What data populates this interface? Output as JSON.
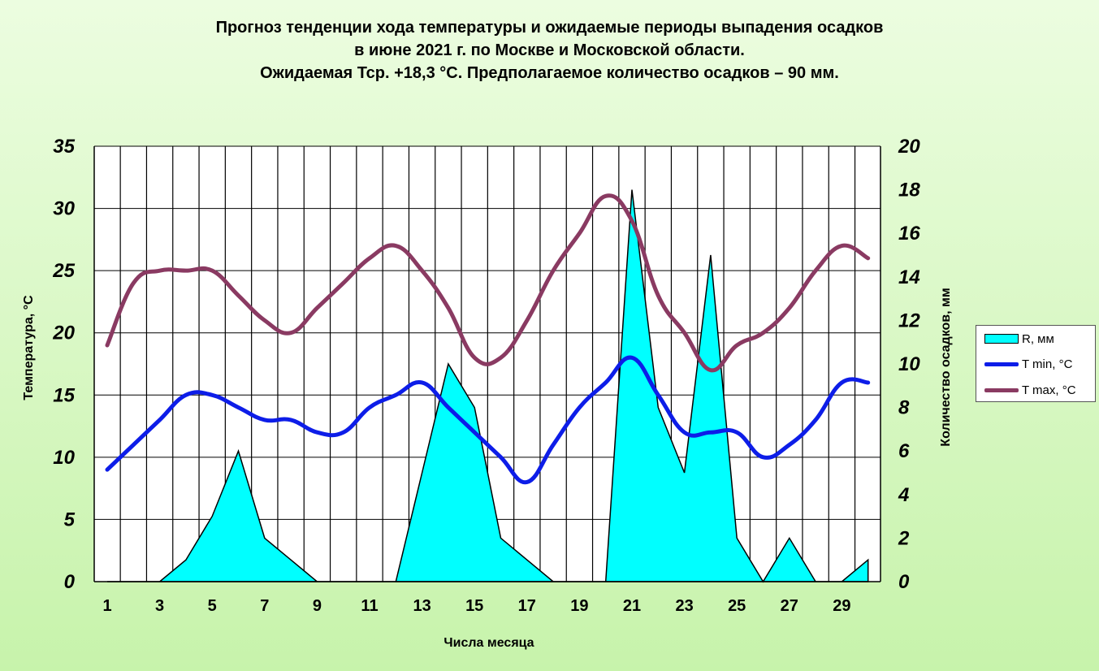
{
  "title": {
    "line1": "Прогноз тенденции хода температуры и ожидаемые периоды выпадения осадков",
    "line2": "в июне 2021 г. по Москве и Московской области.",
    "line3": "Ожидаемая Тср. +18,3 °С. Предполагаемое количество осадков – 90 мм."
  },
  "colors": {
    "precip_fill": "#00ffff",
    "tmin": "#0d1de8",
    "tmax": "#8a3a62",
    "grid": "#000000",
    "plot_bg": "#ffffff"
  },
  "legend": {
    "position": "right",
    "items": [
      {
        "label": "R, мм",
        "series": "precip"
      },
      {
        "label": "T min, °C",
        "series": "tmin"
      },
      {
        "label": "T max, °C",
        "series": "tmax"
      }
    ]
  },
  "chart_data": {
    "type": "line",
    "title": "Прогноз тенденции хода температуры и ожидаемые периоды выпадения осадков в июне 2021 г. по Москве и Московской области.",
    "xlabel": "Числа месяца",
    "ylabel": "Температура, °С",
    "y2label": "Количество осадков, мм",
    "x": [
      1,
      2,
      3,
      4,
      5,
      6,
      7,
      8,
      9,
      10,
      11,
      12,
      13,
      14,
      15,
      16,
      17,
      18,
      19,
      20,
      21,
      22,
      23,
      24,
      25,
      26,
      27,
      28,
      29,
      30
    ],
    "xticks": [
      "1",
      "3",
      "5",
      "7",
      "9",
      "11",
      "13",
      "15",
      "17",
      "19",
      "21",
      "23",
      "25",
      "27",
      "29"
    ],
    "ylim": [
      0,
      35
    ],
    "yticks": [
      "0",
      "5",
      "10",
      "15",
      "20",
      "25",
      "30",
      "35"
    ],
    "y2lim": [
      0,
      20
    ],
    "y2ticks": [
      "0",
      "2",
      "4",
      "6",
      "8",
      "10",
      "12",
      "14",
      "16",
      "18",
      "20"
    ],
    "grid": true,
    "series": [
      {
        "name": "R, мм",
        "type": "area",
        "axis": "right",
        "values": [
          0,
          0,
          0,
          1,
          3,
          6,
          2,
          1,
          0,
          0,
          0,
          0,
          5,
          10,
          8,
          2,
          1,
          0,
          0,
          0,
          18,
          8,
          5,
          15,
          2,
          0,
          2,
          0,
          0,
          1
        ]
      },
      {
        "name": "T min, °C",
        "type": "line",
        "axis": "left",
        "values": [
          9,
          11,
          13,
          15,
          15,
          14,
          13,
          13,
          12,
          12,
          14,
          15,
          16,
          14,
          12,
          10,
          8,
          11,
          14,
          16,
          18,
          15,
          12,
          12,
          12,
          10,
          11,
          13,
          16,
          16
        ]
      },
      {
        "name": "T max, °C",
        "type": "line",
        "axis": "left",
        "values": [
          19,
          24,
          25,
          25,
          25,
          23,
          21,
          20,
          22,
          24,
          26,
          27,
          25,
          22,
          18,
          18,
          21,
          25,
          28,
          31,
          29,
          23,
          20,
          17,
          19,
          20,
          22,
          25,
          27,
          26
        ]
      }
    ]
  }
}
